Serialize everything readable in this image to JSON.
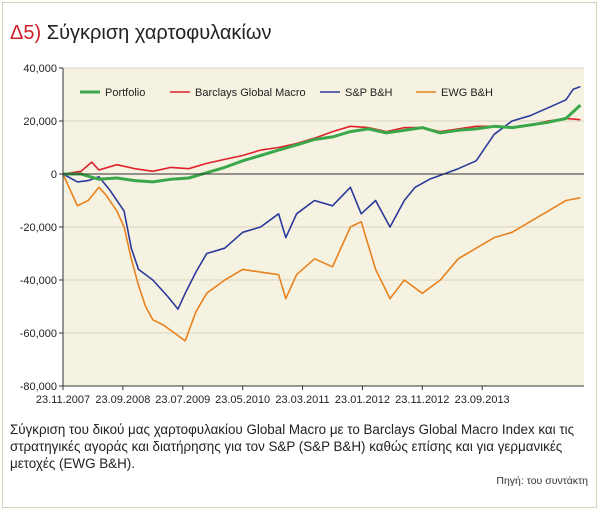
{
  "figure": {
    "number": "Δ5)",
    "title": "Σύγκριση χαρτοφυλακίων",
    "caption": "Σύγκριση του δικού μας χαρτοφυλακίου Global Macro με το Barclays Global Macro Index και τις στρατηγικές αγοράς και διατήρησης για τον S&P (S&P B&H)  καθώς επίσης και για γερμανικές μετοχές (EWG B&H).",
    "source": "Πηγή: του συντάκτη"
  },
  "chart_data": {
    "type": "line",
    "title": "Σύγκριση χαρτοφυλακίων",
    "xlabel": "",
    "ylabel": "",
    "ylim": [
      -80000,
      40000
    ],
    "yticks": [
      40000,
      20000,
      0,
      -20000,
      -40000,
      -60000,
      -80000
    ],
    "ytick_labels": [
      "40,000",
      "20,000",
      "0",
      "-20,000",
      "-40,000",
      "-60,000",
      "-80,000"
    ],
    "xlim": [
      2007.0,
      2014.25
    ],
    "xticks": [
      2007.0,
      2007.833,
      2008.667,
      2009.5,
      2010.333,
      2011.167,
      2012.0,
      2012.833
    ],
    "xtick_labels": [
      "23.11.2007",
      "23.09.2008",
      "23.07.2009",
      "23.05.2010",
      "23.03.2011",
      "23.01.2012",
      "23.11.2012",
      "23.09.2013"
    ],
    "grid": "horizontal",
    "legend_position": "top",
    "series": [
      {
        "name": "Portfolio",
        "color": "#3aa84a",
        "width": 3,
        "x": [
          2007.0,
          2007.25,
          2007.5,
          2007.75,
          2008.0,
          2008.25,
          2008.5,
          2008.75,
          2009.0,
          2009.25,
          2009.5,
          2009.75,
          2010.0,
          2010.25,
          2010.5,
          2010.75,
          2011.0,
          2011.25,
          2011.5,
          2011.75,
          2012.0,
          2012.25,
          2012.5,
          2012.75,
          2013.0,
          2013.25,
          2013.5,
          2013.75,
          2014.0,
          2014.2
        ],
        "y": [
          0,
          0,
          -2000,
          -1500,
          -2500,
          -3000,
          -2000,
          -1500,
          500,
          2500,
          5000,
          7000,
          9000,
          11000,
          13000,
          14000,
          16000,
          17000,
          15500,
          16500,
          17500,
          15500,
          16500,
          17000,
          18000,
          17500,
          18500,
          19500,
          21000,
          26000
        ]
      },
      {
        "name": "Barclays Global Macro",
        "color": "#e0202a",
        "width": 1.6,
        "x": [
          2007.0,
          2007.25,
          2007.4,
          2007.5,
          2007.75,
          2008.0,
          2008.25,
          2008.5,
          2008.75,
          2009.0,
          2009.25,
          2009.5,
          2009.75,
          2010.0,
          2010.25,
          2010.5,
          2010.75,
          2011.0,
          2011.25,
          2011.5,
          2011.75,
          2012.0,
          2012.25,
          2012.5,
          2012.75,
          2013.0,
          2013.25,
          2013.5,
          2013.75,
          2014.0,
          2014.2
        ],
        "y": [
          0,
          1000,
          4500,
          1500,
          3500,
          2000,
          1000,
          2500,
          2000,
          4000,
          5500,
          7000,
          9000,
          10000,
          11500,
          13500,
          16000,
          18000,
          17500,
          16000,
          17500,
          17500,
          16000,
          17000,
          18000,
          18000,
          17500,
          18500,
          20000,
          21000,
          20500
        ]
      },
      {
        "name": "S&P B&H",
        "color": "#2a3a9a",
        "width": 1.6,
        "x": [
          2007.0,
          2007.2,
          2007.35,
          2007.5,
          2007.65,
          2007.85,
          2007.95,
          2008.05,
          2008.25,
          2008.45,
          2008.6,
          2008.7,
          2008.85,
          2009.0,
          2009.25,
          2009.5,
          2009.75,
          2010.0,
          2010.1,
          2010.25,
          2010.5,
          2010.75,
          2011.0,
          2011.15,
          2011.35,
          2011.55,
          2011.75,
          2011.9,
          2012.1,
          2012.3,
          2012.5,
          2012.75,
          2013.0,
          2013.25,
          2013.5,
          2013.75,
          2014.0,
          2014.1,
          2014.2
        ],
        "y": [
          0,
          -3000,
          -2500,
          -1000,
          -6000,
          -14000,
          -28000,
          -36000,
          -40000,
          -46000,
          -51000,
          -45000,
          -37000,
          -30000,
          -28000,
          -22000,
          -20000,
          -15000,
          -24000,
          -15000,
          -10000,
          -12000,
          -5000,
          -15000,
          -10000,
          -20000,
          -10000,
          -5000,
          -2000,
          0,
          2000,
          5000,
          15000,
          20000,
          22000,
          25000,
          28000,
          32000,
          33000
        ]
      },
      {
        "name": "EWG B&H",
        "color": "#e8821e",
        "width": 1.6,
        "x": [
          2007.0,
          2007.2,
          2007.35,
          2007.5,
          2007.6,
          2007.75,
          2007.85,
          2007.95,
          2008.05,
          2008.15,
          2008.25,
          2008.4,
          2008.55,
          2008.7,
          2008.85,
          2009.0,
          2009.25,
          2009.5,
          2009.75,
          2010.0,
          2010.1,
          2010.25,
          2010.5,
          2010.75,
          2011.0,
          2011.15,
          2011.35,
          2011.55,
          2011.75,
          2012.0,
          2012.25,
          2012.5,
          2012.75,
          2013.0,
          2013.25,
          2013.5,
          2013.75,
          2014.0,
          2014.2
        ],
        "y": [
          0,
          -12000,
          -10000,
          -5000,
          -8000,
          -14000,
          -20000,
          -32000,
          -42000,
          -50000,
          -55000,
          -57000,
          -60000,
          -63000,
          -52000,
          -45000,
          -40000,
          -36000,
          -37000,
          -38000,
          -47000,
          -38000,
          -32000,
          -35000,
          -20000,
          -18000,
          -36000,
          -47000,
          -40000,
          -45000,
          -40000,
          -32000,
          -28000,
          -24000,
          -22000,
          -18000,
          -14000,
          -10000,
          -9000
        ]
      }
    ]
  }
}
